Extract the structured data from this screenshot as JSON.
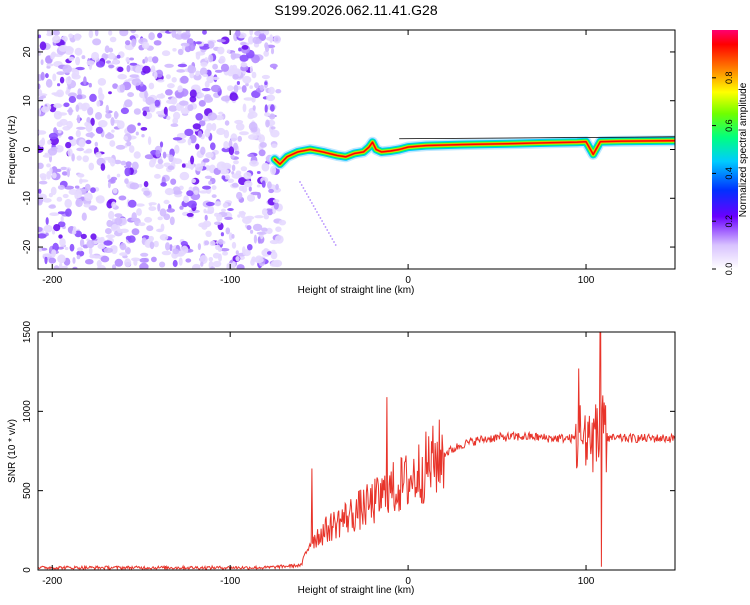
{
  "title": "S199.2026.062.11.41.G28",
  "chart_data": [
    {
      "type": "heatmap",
      "name": "spectrogram",
      "xlabel": "Height of straight line (km)",
      "ylabel": "Frequency (Hz)",
      "xlim": [
        -208,
        150
      ],
      "ylim": [
        -24.5,
        24.5
      ],
      "xticks": [
        -200,
        -100,
        0,
        100
      ],
      "yticks": [
        -20,
        -10,
        0,
        10,
        20
      ],
      "colorbar": {
        "label": "Normalized spectral amplitude",
        "range": [
          0,
          1
        ],
        "ticks": [
          0.0,
          0.2,
          0.4,
          0.6,
          0.8
        ]
      },
      "noise_region_x": [
        -208,
        -72
      ],
      "track": {
        "x": [
          -75,
          -72,
          -68,
          -62,
          -55,
          -48,
          -40,
          -35,
          -30,
          -25,
          -22,
          -20,
          -18,
          -15,
          -10,
          -5,
          0,
          10,
          30,
          60,
          80,
          95,
          100,
          104,
          108,
          120,
          150
        ],
        "y": [
          -2,
          -3,
          -1.5,
          -0.5,
          0,
          -0.5,
          -1.2,
          -1.5,
          -0.8,
          -0.5,
          0.5,
          1.5,
          0,
          -0.5,
          -0.3,
          0,
          0.5,
          0.8,
          1.0,
          1.2,
          1.4,
          1.5,
          1.6,
          -1.0,
          1.6,
          1.7,
          1.8
        ]
      }
    },
    {
      "type": "line",
      "name": "snr",
      "xlabel": "Height of straight line (km)",
      "ylabel": "SNR (10 * v/v)",
      "xlim": [
        -208,
        150
      ],
      "ylim": [
        0,
        1500
      ],
      "xticks": [
        -200,
        -100,
        0,
        100
      ],
      "yticks": [
        0,
        500,
        1000,
        1500
      ],
      "color": "#e8342a",
      "envelope": {
        "x": [
          -208,
          -150,
          -80,
          -60,
          -55,
          -50,
          -40,
          -30,
          -20,
          -10,
          0,
          10,
          20,
          30,
          40,
          50,
          60,
          70,
          80,
          90,
          95,
          100,
          150
        ],
        "y": [
          15,
          15,
          15,
          30,
          180,
          220,
          300,
          360,
          420,
          500,
          560,
          650,
          730,
          790,
          820,
          835,
          840,
          840,
          830,
          830,
          830,
          830,
          830
        ]
      },
      "spikes": [
        {
          "x": -54,
          "y": 640
        },
        {
          "x": -12,
          "y": 1090
        },
        {
          "x": 96,
          "y": 1270
        },
        {
          "x": 108,
          "y": 1500
        },
        {
          "x": 108.5,
          "y": 20
        }
      ]
    }
  ]
}
